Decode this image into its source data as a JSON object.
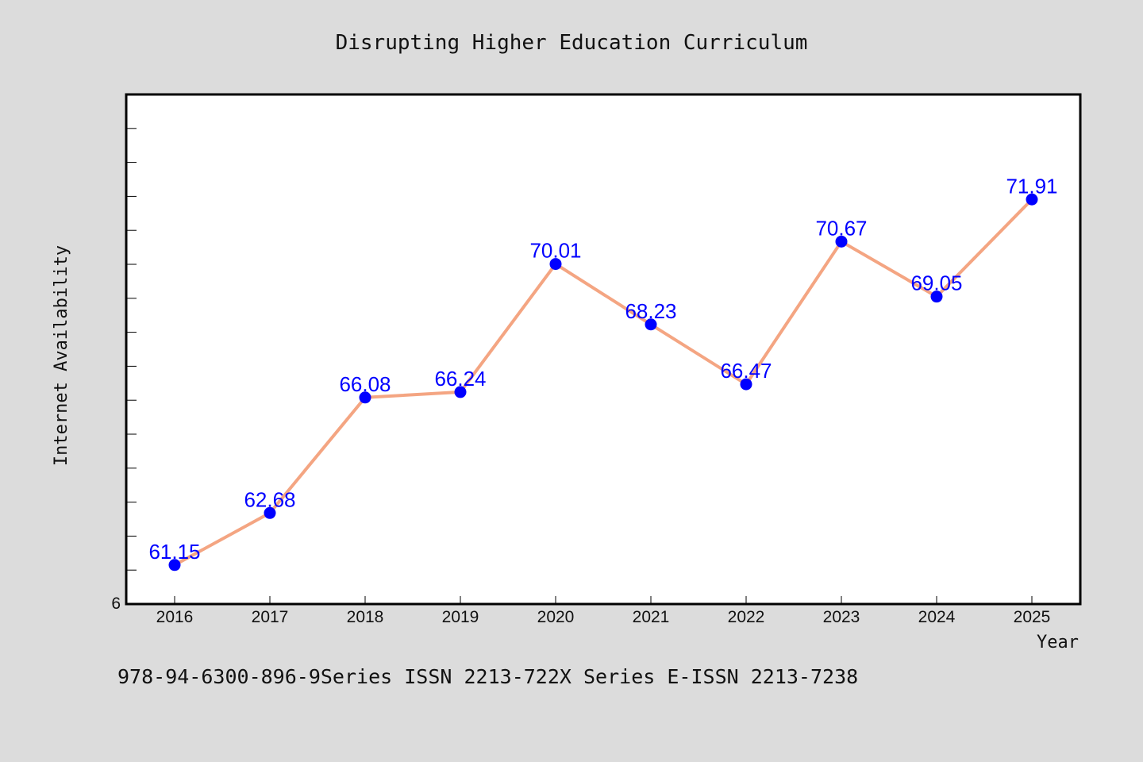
{
  "chart_data": {
    "type": "line",
    "title": "Disrupting Higher Education Curriculum",
    "xlabel": "Year",
    "ylabel": "Internet Availability",
    "categories": [
      "2016",
      "2017",
      "2018",
      "2019",
      "2020",
      "2021",
      "2022",
      "2023",
      "2024",
      "2025"
    ],
    "series": [
      {
        "values": [
          61.15,
          62.68,
          66.08,
          66.24,
          70.01,
          68.23,
          66.47,
          70.67,
          69.05,
          71.91
        ],
        "labels": [
          "61.15",
          "62.68",
          "66.08",
          "66.24",
          "70.01",
          "68.23",
          "66.47",
          "70.67",
          "69.05",
          "71.91"
        ],
        "line_color": "#f4a582",
        "marker_color": "#0000ff"
      }
    ],
    "ylim": [
      60,
      75
    ],
    "y_tick_label": "6",
    "grid": false,
    "legend": "none"
  },
  "footer": {
    "text": "978-94-6300-896-9Series ISSN 2213-722X Series E-ISSN 2213-7238"
  }
}
